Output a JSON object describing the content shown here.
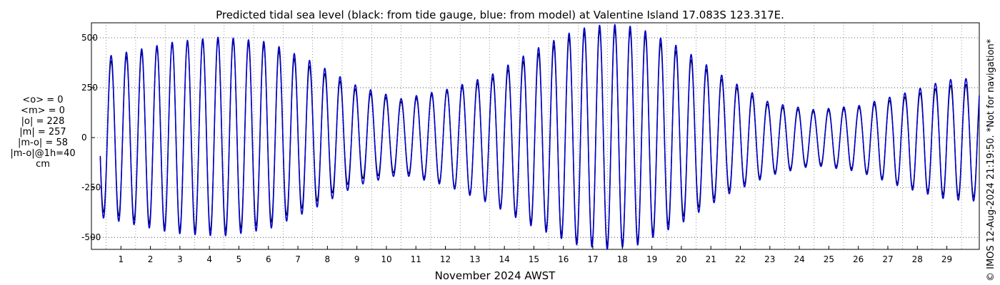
{
  "chart_data": {
    "type": "line",
    "title": "Predicted tidal sea level (black: from tide gauge, blue: from model) at Valentine Island 17.083S 123.317E.",
    "xlabel": "November 2024 AWST",
    "ylabel": "",
    "xlim": [
      0,
      30.1
    ],
    "ylim": [
      -560,
      575
    ],
    "x_ticks": [
      1,
      2,
      3,
      4,
      5,
      6,
      7,
      8,
      9,
      10,
      11,
      12,
      13,
      14,
      15,
      16,
      17,
      18,
      19,
      20,
      21,
      22,
      23,
      24,
      25,
      26,
      27,
      28,
      29
    ],
    "x_tick_labels": [
      "1",
      "2",
      "3",
      "4",
      "5",
      "6",
      "7",
      "8",
      "9",
      "10",
      "11",
      "12",
      "13",
      "14",
      "15",
      "16",
      "17",
      "18",
      "19",
      "20",
      "21",
      "22",
      "23",
      "24",
      "25",
      "26",
      "27",
      "28",
      "29"
    ],
    "y_ticks": [
      500,
      250,
      0,
      -250,
      -500
    ],
    "y_tick_labels": [
      "500",
      "250",
      "0",
      "-250",
      "-500"
    ],
    "grid": true,
    "series": [
      {
        "name": "tide gauge",
        "color": "#000000",
        "description": "semidiurnal tide, period ~12.42 h",
        "daily_high_amplitude_cm": [
          {
            "x": 0.3,
            "high": 370,
            "low": -370
          },
          {
            "x": 2.8,
            "high": 470,
            "low": -460
          },
          {
            "x": 4.4,
            "high": 490,
            "low": -470
          },
          {
            "x": 6.0,
            "high": 460,
            "low": -430
          },
          {
            "x": 7.5,
            "high": 350,
            "low": -330
          },
          {
            "x": 9.0,
            "high": 240,
            "low": -210
          },
          {
            "x": 10.5,
            "high": 180,
            "low": -170
          },
          {
            "x": 12.0,
            "high": 230,
            "low": -230
          },
          {
            "x": 13.5,
            "high": 290,
            "low": -320
          },
          {
            "x": 15.0,
            "high": 410,
            "low": -430
          },
          {
            "x": 16.5,
            "high": 520,
            "low": -520
          },
          {
            "x": 17.5,
            "high": 545,
            "low": -540
          },
          {
            "x": 18.5,
            "high": 530,
            "low": -520
          },
          {
            "x": 20.0,
            "high": 420,
            "low": -400
          },
          {
            "x": 21.5,
            "high": 280,
            "low": -270
          },
          {
            "x": 23.0,
            "high": 160,
            "low": -180
          },
          {
            "x": 24.5,
            "high": 130,
            "low": -130
          },
          {
            "x": 26.0,
            "high": 150,
            "low": -160
          },
          {
            "x": 27.5,
            "high": 200,
            "low": -240
          },
          {
            "x": 29.0,
            "high": 260,
            "low": -290
          },
          {
            "x": 30.1,
            "high": 270,
            "low": -300
          }
        ]
      },
      {
        "name": "model",
        "color": "#0000cc",
        "description": "semidiurnal tide, period ~12.42 h",
        "daily_high_amplitude_cm": [
          {
            "x": 0.3,
            "high": 400,
            "low": -400
          },
          {
            "x": 2.8,
            "high": 480,
            "low": -480
          },
          {
            "x": 4.4,
            "high": 505,
            "low": -495
          },
          {
            "x": 6.0,
            "high": 480,
            "low": -460
          },
          {
            "x": 7.5,
            "high": 380,
            "low": -360
          },
          {
            "x": 9.0,
            "high": 260,
            "low": -240
          },
          {
            "x": 10.5,
            "high": 195,
            "low": -185
          },
          {
            "x": 12.0,
            "high": 240,
            "low": -240
          },
          {
            "x": 13.5,
            "high": 310,
            "low": -330
          },
          {
            "x": 15.0,
            "high": 440,
            "low": -450
          },
          {
            "x": 16.5,
            "high": 545,
            "low": -540
          },
          {
            "x": 17.5,
            "high": 570,
            "low": -560
          },
          {
            "x": 18.5,
            "high": 555,
            "low": -540
          },
          {
            "x": 20.0,
            "high": 450,
            "low": -430
          },
          {
            "x": 21.5,
            "high": 300,
            "low": -290
          },
          {
            "x": 23.0,
            "high": 175,
            "low": -190
          },
          {
            "x": 24.5,
            "high": 140,
            "low": -140
          },
          {
            "x": 26.0,
            "high": 160,
            "low": -170
          },
          {
            "x": 27.5,
            "high": 220,
            "low": -250
          },
          {
            "x": 29.0,
            "high": 290,
            "low": -310
          },
          {
            "x": 30.1,
            "high": 300,
            "low": -320
          }
        ]
      }
    ]
  },
  "stats": {
    "mean_obs": "<o> = 0",
    "mean_model": "<m> = 0",
    "abs_obs": "|o| = 228",
    "abs_model": "|m| = 257",
    "abs_diff": "|m-o| = 58",
    "abs_diff_1h": "|m-o|@1h=40",
    "unit": "cm"
  },
  "side_note": "© IMOS 12-Aug-2024 21:19:50. *Not for navigation*"
}
